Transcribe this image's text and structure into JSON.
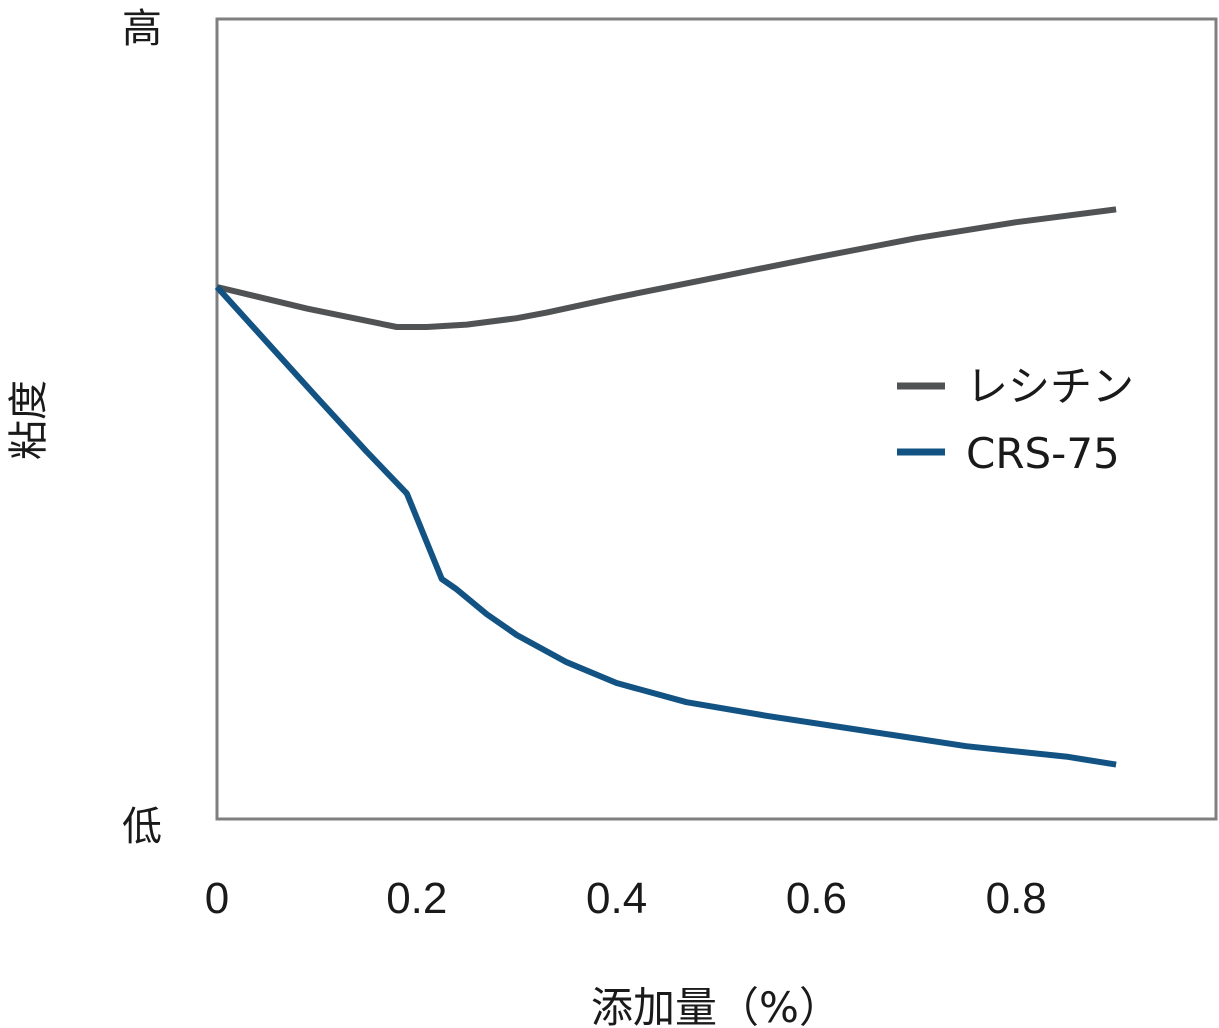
{
  "chart_data": {
    "type": "line",
    "xlabel": "添加量（%）",
    "ylabel": "粘度",
    "y_high_label": "高",
    "y_low_label": "低",
    "xlim": [
      0,
      1.0
    ],
    "ylim": [
      0,
      100
    ],
    "x_ticks": [
      0,
      0.2,
      0.4,
      0.6,
      0.8
    ],
    "x_tick_labels": [
      "0",
      "0.2",
      "0.4",
      "0.6",
      "0.8"
    ],
    "grid": false,
    "legend_position": "right",
    "series": [
      {
        "name": "レシチン",
        "color": "#505254",
        "x": [
          0,
          0.09,
          0.18,
          0.21,
          0.25,
          0.3,
          0.33,
          0.4,
          0.5,
          0.6,
          0.7,
          0.8,
          0.9
        ],
        "y": [
          66.5,
          63.8,
          61.5,
          61.5,
          61.8,
          62.6,
          63.3,
          65.2,
          67.7,
          70.2,
          72.6,
          74.6,
          76.2
        ]
      },
      {
        "name": "CRS-75",
        "color": "#125384",
        "x": [
          0,
          0.05,
          0.1,
          0.15,
          0.19,
          0.225,
          0.24,
          0.27,
          0.3,
          0.35,
          0.4,
          0.47,
          0.55,
          0.65,
          0.75,
          0.85,
          0.9
        ],
        "y": [
          66.5,
          59.6,
          52.7,
          45.9,
          40.7,
          30.0,
          28.7,
          25.6,
          23.0,
          19.6,
          17.0,
          14.6,
          12.9,
          11.0,
          9.1,
          7.8,
          6.8
        ]
      }
    ]
  }
}
